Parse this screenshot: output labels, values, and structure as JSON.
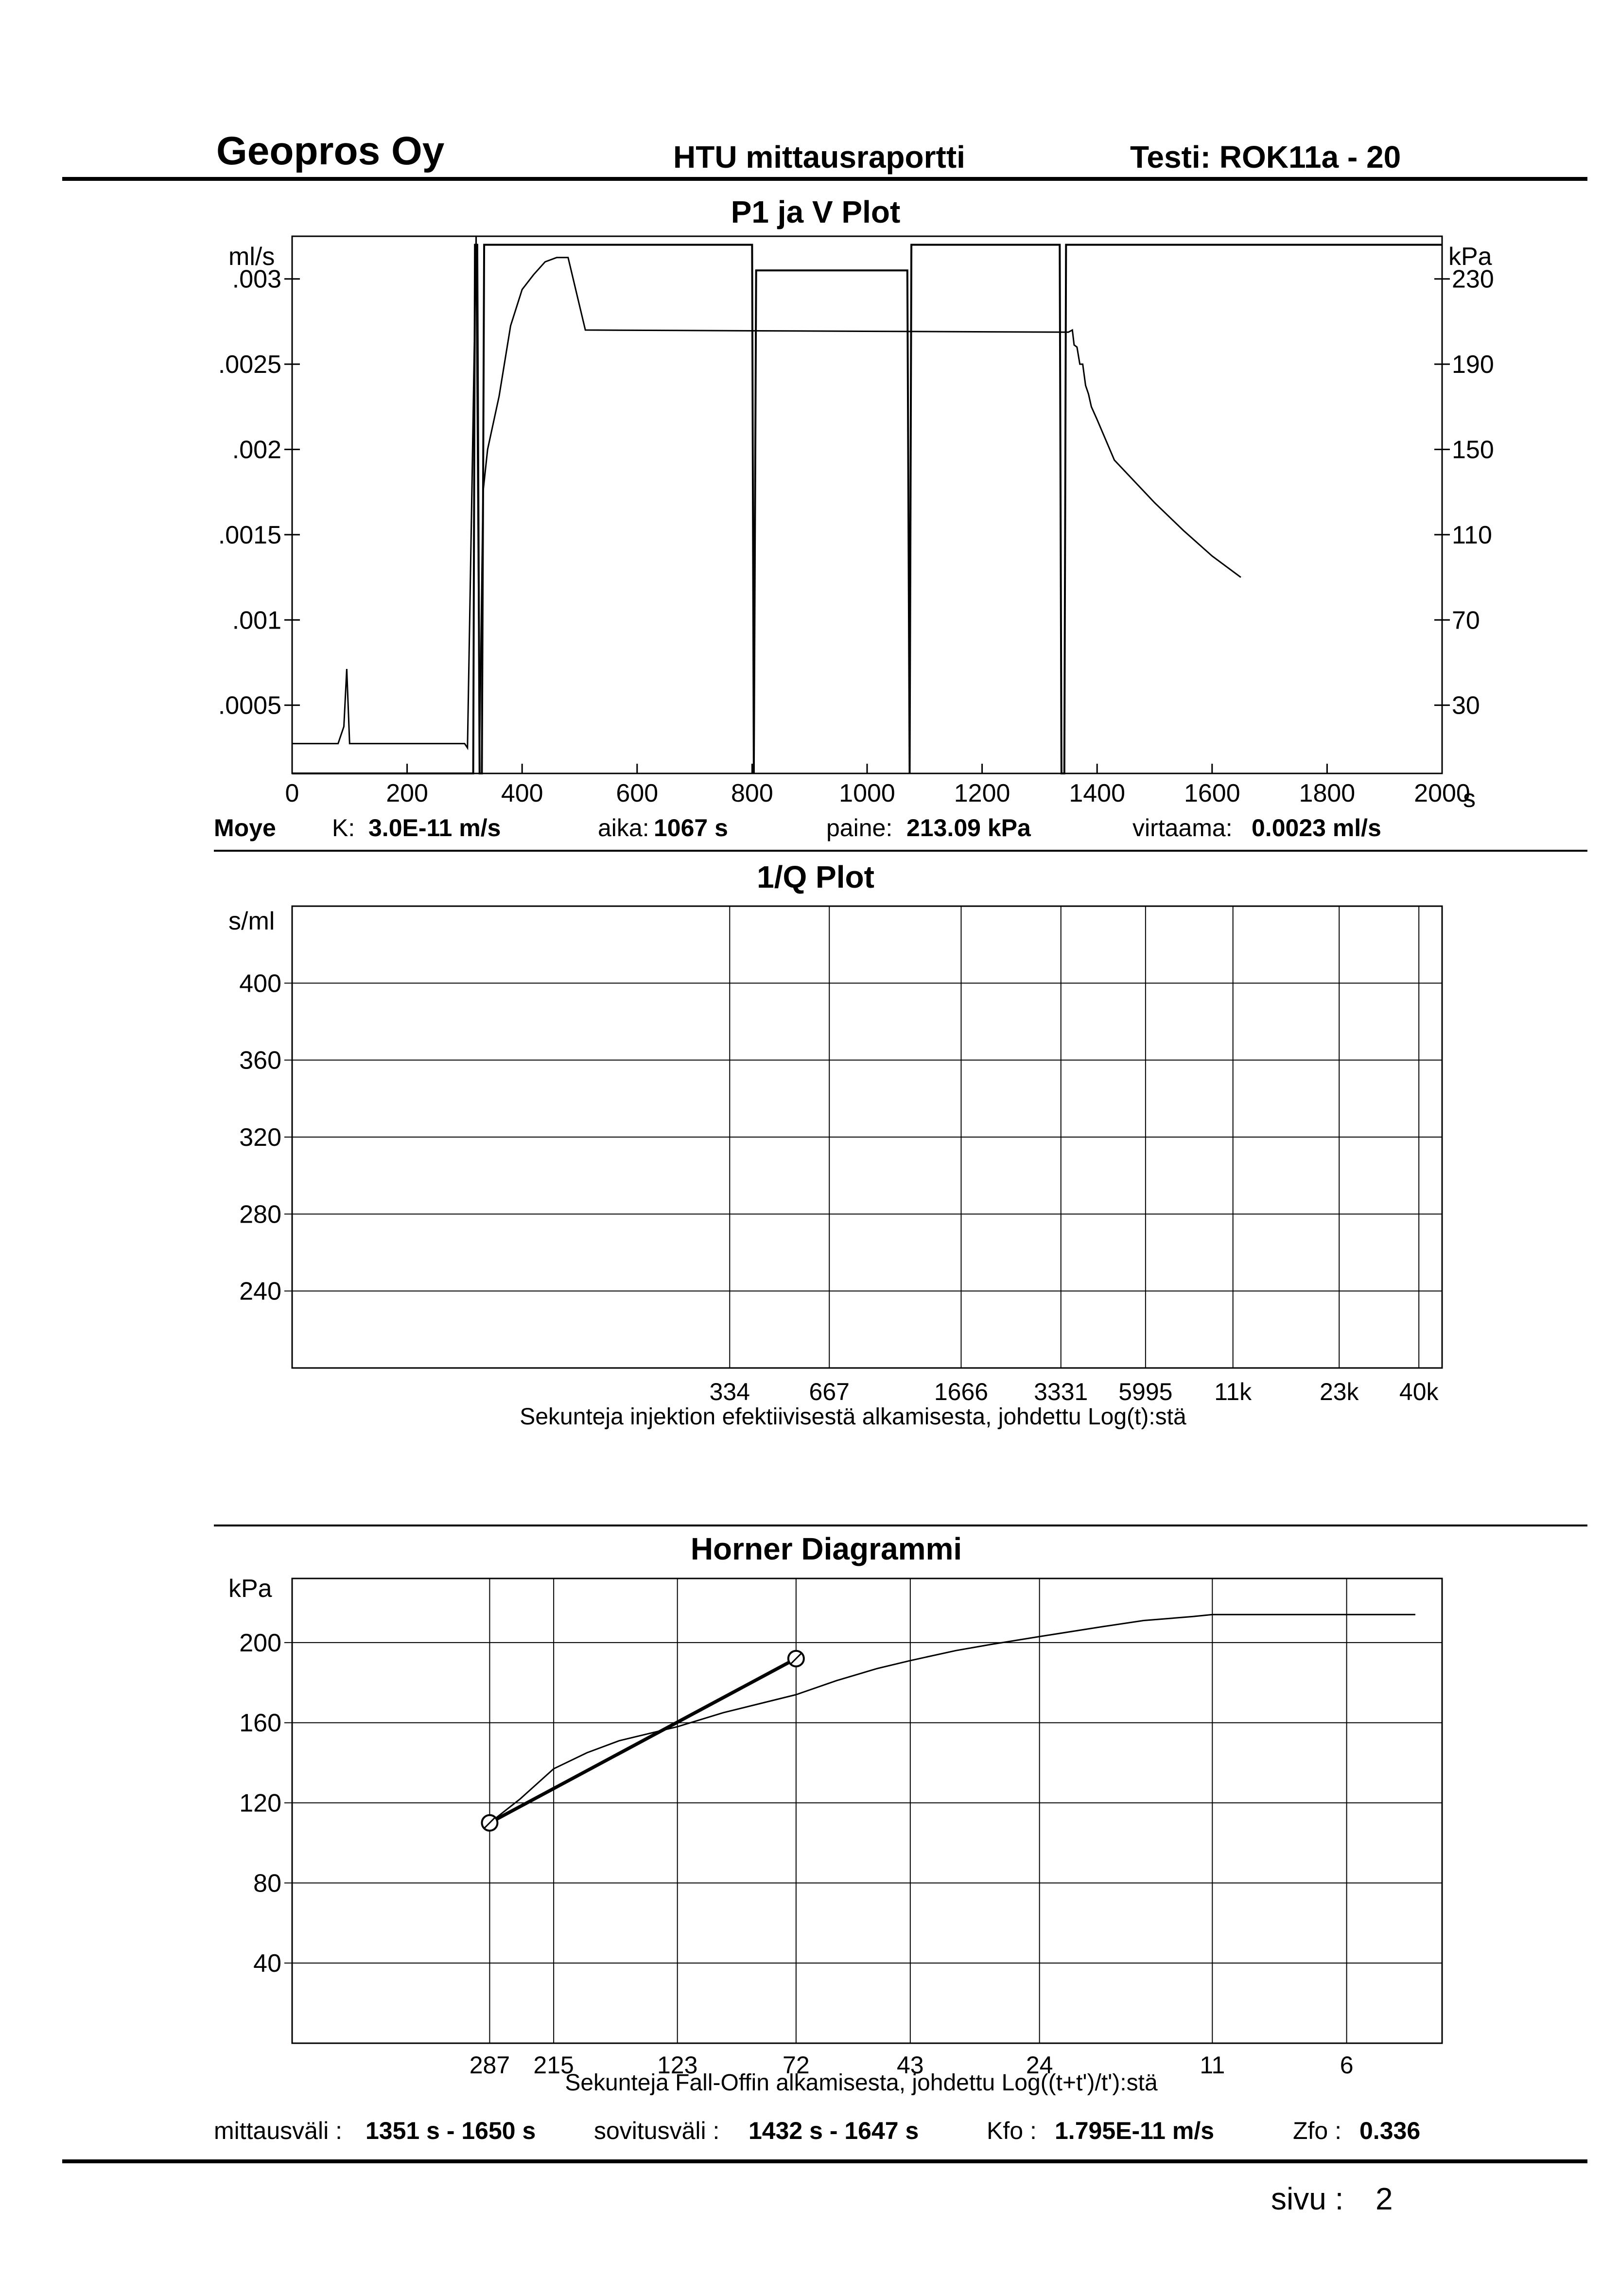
{
  "header": {
    "company": "Geopros Oy",
    "report": "HTU mittausraportti",
    "test": "Testi: ROK11a - 20"
  },
  "p1v": {
    "title": "P1 ja V Plot",
    "y_left_unit": "ml/s",
    "y_right_unit": "kPa",
    "x_unit": "s",
    "stats": {
      "method": "Moye",
      "k_label": "K:",
      "k_value": "3.0E-11 m/s",
      "aika_label": "aika:",
      "aika_value": "1067 s",
      "paine_label": "paine:",
      "paine_value": "213.09 kPa",
      "virtaama_label": "virtaama:",
      "virtaama_value": "0.0023 ml/s"
    }
  },
  "invq": {
    "title": "1/Q Plot",
    "y_unit": "s/ml",
    "xlabel": "Sekunteja injektion efektiivisestä alkamisesta, johdettu Log(t):stä"
  },
  "horner": {
    "title": "Horner Diagrammi",
    "y_unit": "kPa",
    "xlabel": "Sekunteja Fall-Offin alkamisesta, johdettu Log((t+t')/t'):stä"
  },
  "footer": {
    "mittausvali_label": "mittausväli :",
    "mittausvali_value": "1351 s - 1650 s",
    "sovitusvali_label": "sovitusväli :",
    "sovitusvali_value": "1432 s - 1647 s",
    "kfo_label": "Kfo :",
    "kfo_value": "1.795E-11 m/s",
    "zfo_label": "Zfo :",
    "zfo_value": "0.336"
  },
  "page": {
    "label": "sivu :",
    "number": "2"
  },
  "chart_data": [
    {
      "type": "line",
      "title": "P1 ja V Plot",
      "xlim": [
        0,
        2000
      ],
      "x_ticks": [
        "0",
        "200",
        "400",
        "600",
        "800",
        "1000",
        "1200",
        "1400",
        "1600",
        "1800",
        "2000"
      ],
      "y_left": {
        "unit": "ml/s",
        "ticks": [
          ".0005",
          ".001",
          ".0015",
          ".002",
          ".0025",
          ".003"
        ],
        "ylim": [
          0.0001,
          0.00325
        ]
      },
      "y_right": {
        "unit": "kPa",
        "ticks": [
          "30",
          "70",
          "110",
          "150",
          "190",
          "230"
        ],
        "ylim": [
          -2,
          250
        ]
      },
      "series": [
        {
          "axis": "right",
          "x": [
            0,
            80,
            90,
            95,
            100,
            300,
            305,
            312,
            320,
            326,
            332,
            340,
            360,
            380,
            400,
            420,
            440,
            460,
            480,
            510,
            1350,
            1357,
            1360,
            1365,
            1370,
            1375,
            1380,
            1385,
            1390,
            1400,
            1430,
            1500,
            1550,
            1600,
            1650
          ],
          "y": [
            12,
            12,
            20,
            47,
            12,
            12,
            10,
            120,
            250,
            10,
            130,
            150,
            175,
            208,
            225,
            232,
            238,
            240,
            240,
            206,
            205,
            206,
            199,
            198,
            190,
            190,
            180,
            176,
            170,
            164,
            145,
            125,
            112,
            100,
            90
          ]
        },
        {
          "axis": "left",
          "x": [
            0,
            315,
            318,
            322,
            326,
            330,
            334,
            338,
            800,
            803,
            807,
            1070,
            1074,
            1077,
            1335,
            1338,
            1343,
            1346,
            2000
          ],
          "y": [
            0.0001,
            0.0001,
            0.0032,
            0.0032,
            0.0001,
            0.0001,
            0.0032,
            0.0032,
            0.0032,
            0.0001,
            0.00305,
            0.00305,
            0.0001,
            0.0032,
            0.0032,
            0.0001,
            0.0001,
            0.0032,
            0.0032
          ]
        }
      ]
    },
    {
      "type": "line",
      "title": "1/Q Plot",
      "y_unit": "s/ml",
      "y_ticks": [
        "240",
        "280",
        "320",
        "360",
        "400"
      ],
      "ylim": [
        200,
        440
      ],
      "x_log_range": [
        16,
        47000
      ],
      "x_ticks": [
        {
          "label": "334",
          "value": 334
        },
        {
          "label": "667",
          "value": 667
        },
        {
          "label": "1666",
          "value": 1666
        },
        {
          "label": "3331",
          "value": 3331
        },
        {
          "label": "5995",
          "value": 5995
        },
        {
          "label": "11k",
          "value": 11000
        },
        {
          "label": "23k",
          "value": 23000
        },
        {
          "label": "40k",
          "value": 40000
        }
      ],
      "series": []
    },
    {
      "type": "line",
      "title": "Horner Diagrammi",
      "y_unit": "kPa",
      "y_ticks": [
        "40",
        "80",
        "120",
        "160",
        "200"
      ],
      "ylim": [
        0,
        232
      ],
      "x_log_range": [
        3.9,
        700
      ],
      "x_ticks": [
        {
          "label": "287",
          "value": 287
        },
        {
          "label": "215",
          "value": 215
        },
        {
          "label": "123",
          "value": 123
        },
        {
          "label": "72",
          "value": 72
        },
        {
          "label": "43",
          "value": 43
        },
        {
          "label": "24",
          "value": 24
        },
        {
          "label": "11",
          "value": 11
        },
        {
          "label": "6",
          "value": 6
        }
      ],
      "series": [
        {
          "kind": "measured",
          "x": [
            287,
            250,
            215,
            185,
            160,
            123,
            100,
            72,
            60,
            50,
            43,
            35,
            30,
            24,
            18,
            15,
            12,
            11,
            9,
            7,
            6,
            5.7,
            4.4
          ],
          "y": [
            110,
            122,
            137,
            145,
            151,
            158,
            165,
            174,
            181,
            187,
            191,
            196,
            199,
            203,
            208,
            211,
            213,
            214,
            214,
            214,
            214,
            214,
            214
          ]
        },
        {
          "kind": "fit",
          "x": [
            287,
            72
          ],
          "y": [
            110,
            192
          ]
        }
      ]
    }
  ]
}
